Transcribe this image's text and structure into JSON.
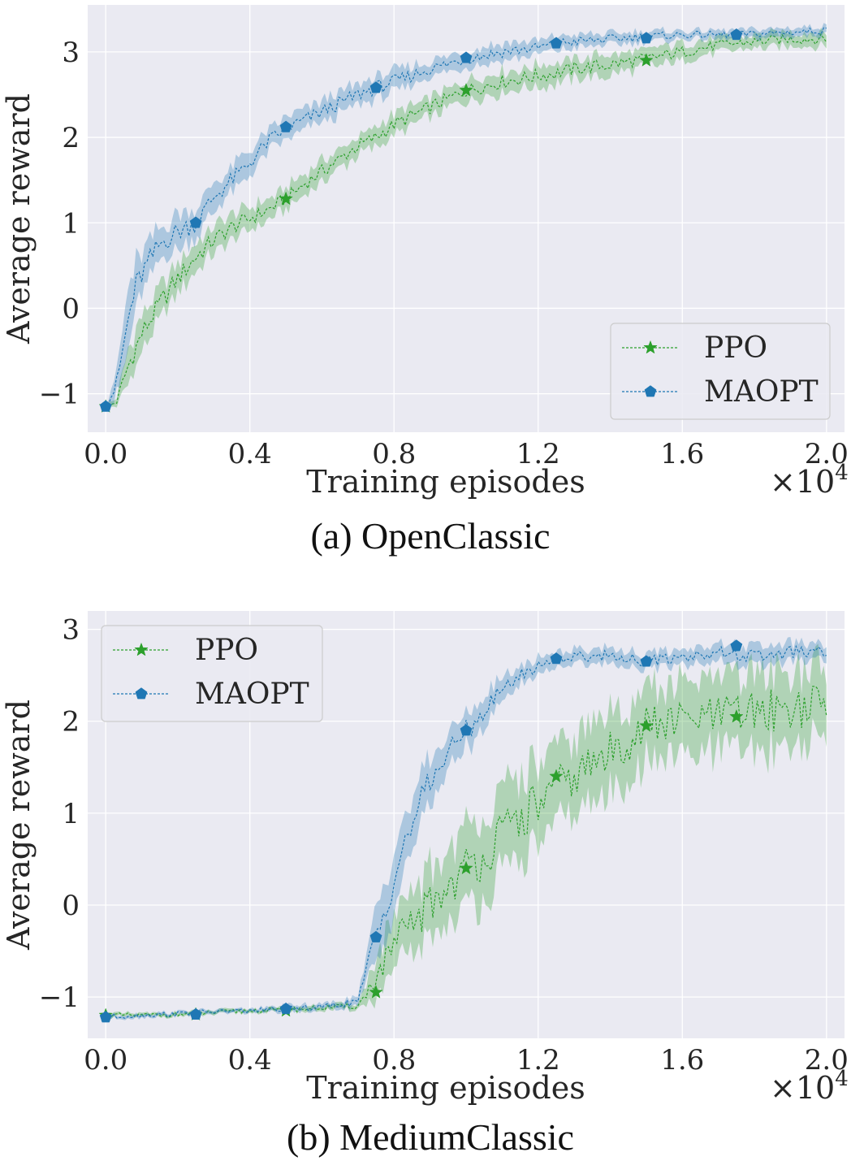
{
  "chart_data": [
    {
      "type": "line",
      "caption": "(a) OpenClassic",
      "xlabel": "Training episodes",
      "ylabel": "Average reward",
      "x_multiplier": "×10",
      "x_multiplier_exp": "4",
      "xlim": [
        -0.05,
        2.05
      ],
      "ylim": [
        -1.45,
        3.55
      ],
      "xticks": [
        0.0,
        0.4,
        0.8,
        1.2,
        1.6,
        2.0
      ],
      "xtick_labels": [
        "0.0",
        "0.4",
        "0.8",
        "1.2",
        "1.6",
        "2.0"
      ],
      "yticks": [
        -1,
        0,
        1,
        2,
        3
      ],
      "ytick_labels": [
        "−1",
        "0",
        "1",
        "2",
        "3"
      ],
      "legend_position": "lower-right",
      "series": [
        {
          "name": "PPO",
          "color": "#2ca02c",
          "marker": "star",
          "x": [
            0.0,
            0.03,
            0.06,
            0.1,
            0.15,
            0.2,
            0.25,
            0.3,
            0.35,
            0.4,
            0.45,
            0.5,
            0.55,
            0.6,
            0.7,
            0.75,
            0.8,
            0.9,
            1.0,
            1.1,
            1.2,
            1.25,
            1.3,
            1.4,
            1.5,
            1.6,
            1.7,
            1.8,
            1.9,
            2.0
          ],
          "y": [
            -1.15,
            -1.1,
            -0.7,
            -0.3,
            0.05,
            0.35,
            0.6,
            0.8,
            0.95,
            1.05,
            1.15,
            1.28,
            1.45,
            1.6,
            1.9,
            2.0,
            2.15,
            2.35,
            2.55,
            2.65,
            2.72,
            2.75,
            2.8,
            2.85,
            2.92,
            3.0,
            3.08,
            3.12,
            3.15,
            3.15
          ],
          "band": [
            0.02,
            0.05,
            0.2,
            0.2,
            0.2,
            0.18,
            0.18,
            0.15,
            0.14,
            0.13,
            0.13,
            0.12,
            0.12,
            0.12,
            0.12,
            0.12,
            0.12,
            0.12,
            0.12,
            0.12,
            0.12,
            0.12,
            0.12,
            0.12,
            0.1,
            0.1,
            0.08,
            0.08,
            0.08,
            0.08
          ],
          "marker_x": [
            0.0,
            0.5,
            1.0,
            1.5
          ],
          "marker_y": [
            -1.15,
            1.28,
            2.55,
            2.9
          ]
        },
        {
          "name": "MAOPT",
          "color": "#1f77b4",
          "marker": "pentagon",
          "x": [
            0.0,
            0.03,
            0.06,
            0.08,
            0.1,
            0.15,
            0.2,
            0.25,
            0.3,
            0.35,
            0.4,
            0.45,
            0.5,
            0.55,
            0.6,
            0.7,
            0.75,
            0.8,
            0.9,
            1.0,
            1.1,
            1.2,
            1.25,
            1.3,
            1.4,
            1.5,
            1.6,
            1.75,
            1.85,
            2.0
          ],
          "y": [
            -1.15,
            -0.9,
            -0.2,
            0.2,
            0.4,
            0.75,
            0.9,
            1.0,
            1.3,
            1.5,
            1.7,
            1.95,
            2.1,
            2.2,
            2.3,
            2.5,
            2.58,
            2.65,
            2.8,
            2.92,
            3.0,
            3.05,
            3.1,
            3.12,
            3.15,
            3.18,
            3.2,
            3.2,
            3.22,
            3.25
          ],
          "band": [
            0.02,
            0.15,
            0.35,
            0.3,
            0.25,
            0.2,
            0.2,
            0.18,
            0.16,
            0.15,
            0.14,
            0.13,
            0.12,
            0.12,
            0.12,
            0.12,
            0.12,
            0.12,
            0.1,
            0.1,
            0.1,
            0.08,
            0.08,
            0.08,
            0.07,
            0.06,
            0.05,
            0.05,
            0.05,
            0.05
          ],
          "marker_x": [
            0.0,
            0.25,
            0.5,
            0.75,
            1.0,
            1.25,
            1.5,
            1.75
          ],
          "marker_y": [
            -1.15,
            1.0,
            2.12,
            2.58,
            2.93,
            3.1,
            3.16,
            3.2
          ]
        }
      ]
    },
    {
      "type": "line",
      "caption": "(b) MediumClassic",
      "xlabel": "Training episodes",
      "ylabel": "Average reward",
      "x_multiplier": "×10",
      "x_multiplier_exp": "4",
      "xlim": [
        -0.05,
        2.05
      ],
      "ylim": [
        -1.45,
        3.2
      ],
      "xticks": [
        0.0,
        0.4,
        0.8,
        1.2,
        1.6,
        2.0
      ],
      "xtick_labels": [
        "0.0",
        "0.4",
        "0.8",
        "1.2",
        "1.6",
        "2.0"
      ],
      "yticks": [
        -1,
        0,
        1,
        2,
        3
      ],
      "ytick_labels": [
        "−1",
        "0",
        "1",
        "2",
        "3"
      ],
      "legend_position": "upper-left",
      "series": [
        {
          "name": "PPO",
          "color": "#2ca02c",
          "marker": "star",
          "x": [
            0.0,
            0.1,
            0.2,
            0.3,
            0.4,
            0.5,
            0.6,
            0.7,
            0.75,
            0.8,
            0.85,
            0.9,
            0.95,
            1.0,
            1.05,
            1.1,
            1.15,
            1.2,
            1.3,
            1.4,
            1.5,
            1.6,
            1.7,
            1.8,
            1.9,
            2.0
          ],
          "y": [
            -1.2,
            -1.2,
            -1.19,
            -1.17,
            -1.15,
            -1.14,
            -1.12,
            -1.1,
            -0.8,
            -0.45,
            -0.2,
            0.0,
            0.2,
            0.4,
            0.55,
            0.75,
            0.95,
            1.1,
            1.4,
            1.65,
            1.95,
            2.0,
            2.05,
            2.1,
            2.15,
            2.18
          ],
          "band": [
            0.02,
            0.02,
            0.02,
            0.02,
            0.02,
            0.02,
            0.03,
            0.03,
            0.2,
            0.3,
            0.35,
            0.4,
            0.4,
            0.42,
            0.45,
            0.45,
            0.45,
            0.45,
            0.42,
            0.42,
            0.4,
            0.38,
            0.4,
            0.4,
            0.42,
            0.42
          ],
          "marker_x": [
            0.0,
            0.25,
            0.5,
            0.75,
            1.0,
            1.25,
            1.5,
            1.75
          ],
          "marker_y": [
            -1.2,
            -1.19,
            -1.15,
            -0.95,
            0.4,
            1.4,
            1.95,
            2.05
          ]
        },
        {
          "name": "MAOPT",
          "color": "#1f77b4",
          "marker": "pentagon",
          "x": [
            0.0,
            0.1,
            0.2,
            0.3,
            0.4,
            0.5,
            0.6,
            0.7,
            0.75,
            0.8,
            0.85,
            0.9,
            0.95,
            1.0,
            1.05,
            1.1,
            1.15,
            1.2,
            1.25,
            1.3,
            1.4,
            1.5,
            1.6,
            1.7,
            1.8,
            1.9,
            2.0
          ],
          "y": [
            -1.22,
            -1.2,
            -1.18,
            -1.16,
            -1.15,
            -1.13,
            -1.11,
            -1.05,
            -0.35,
            0.3,
            0.9,
            1.35,
            1.65,
            1.9,
            2.1,
            2.35,
            2.5,
            2.6,
            2.68,
            2.7,
            2.72,
            2.65,
            2.7,
            2.75,
            2.7,
            2.75,
            2.75
          ],
          "band": [
            0.02,
            0.02,
            0.02,
            0.02,
            0.02,
            0.03,
            0.03,
            0.05,
            0.3,
            0.3,
            0.28,
            0.25,
            0.2,
            0.2,
            0.15,
            0.12,
            0.1,
            0.1,
            0.08,
            0.08,
            0.08,
            0.08,
            0.08,
            0.1,
            0.1,
            0.1,
            0.08
          ],
          "marker_x": [
            0.0,
            0.25,
            0.5,
            0.75,
            1.0,
            1.25,
            1.5,
            1.75
          ],
          "marker_y": [
            -1.22,
            -1.19,
            -1.13,
            -0.35,
            1.9,
            2.68,
            2.65,
            2.82
          ]
        }
      ]
    }
  ]
}
